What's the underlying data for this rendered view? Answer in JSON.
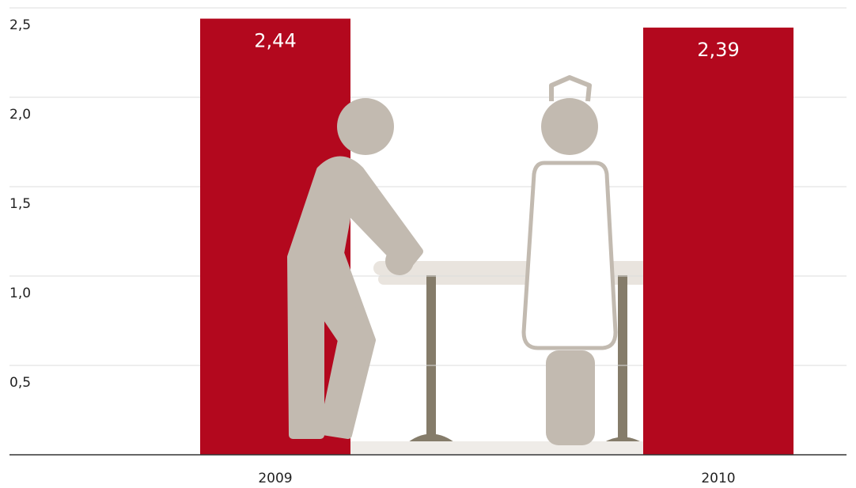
{
  "chart_data": {
    "type": "bar",
    "categories": [
      "2009",
      "2010"
    ],
    "values": [
      2.44,
      2.39
    ],
    "value_labels": [
      "2,44",
      "2,39"
    ],
    "color": "#b3081e",
    "ylim": [
      0,
      2.5
    ],
    "yticks": [
      {
        "value": 0.5,
        "label": "0,5"
      },
      {
        "value": 1.0,
        "label": "1,0"
      },
      {
        "value": 1.5,
        "label": "1,5"
      },
      {
        "value": 2.0,
        "label": "2,0"
      },
      {
        "value": 2.5,
        "label": "2,5"
      }
    ],
    "grid": true
  }
}
